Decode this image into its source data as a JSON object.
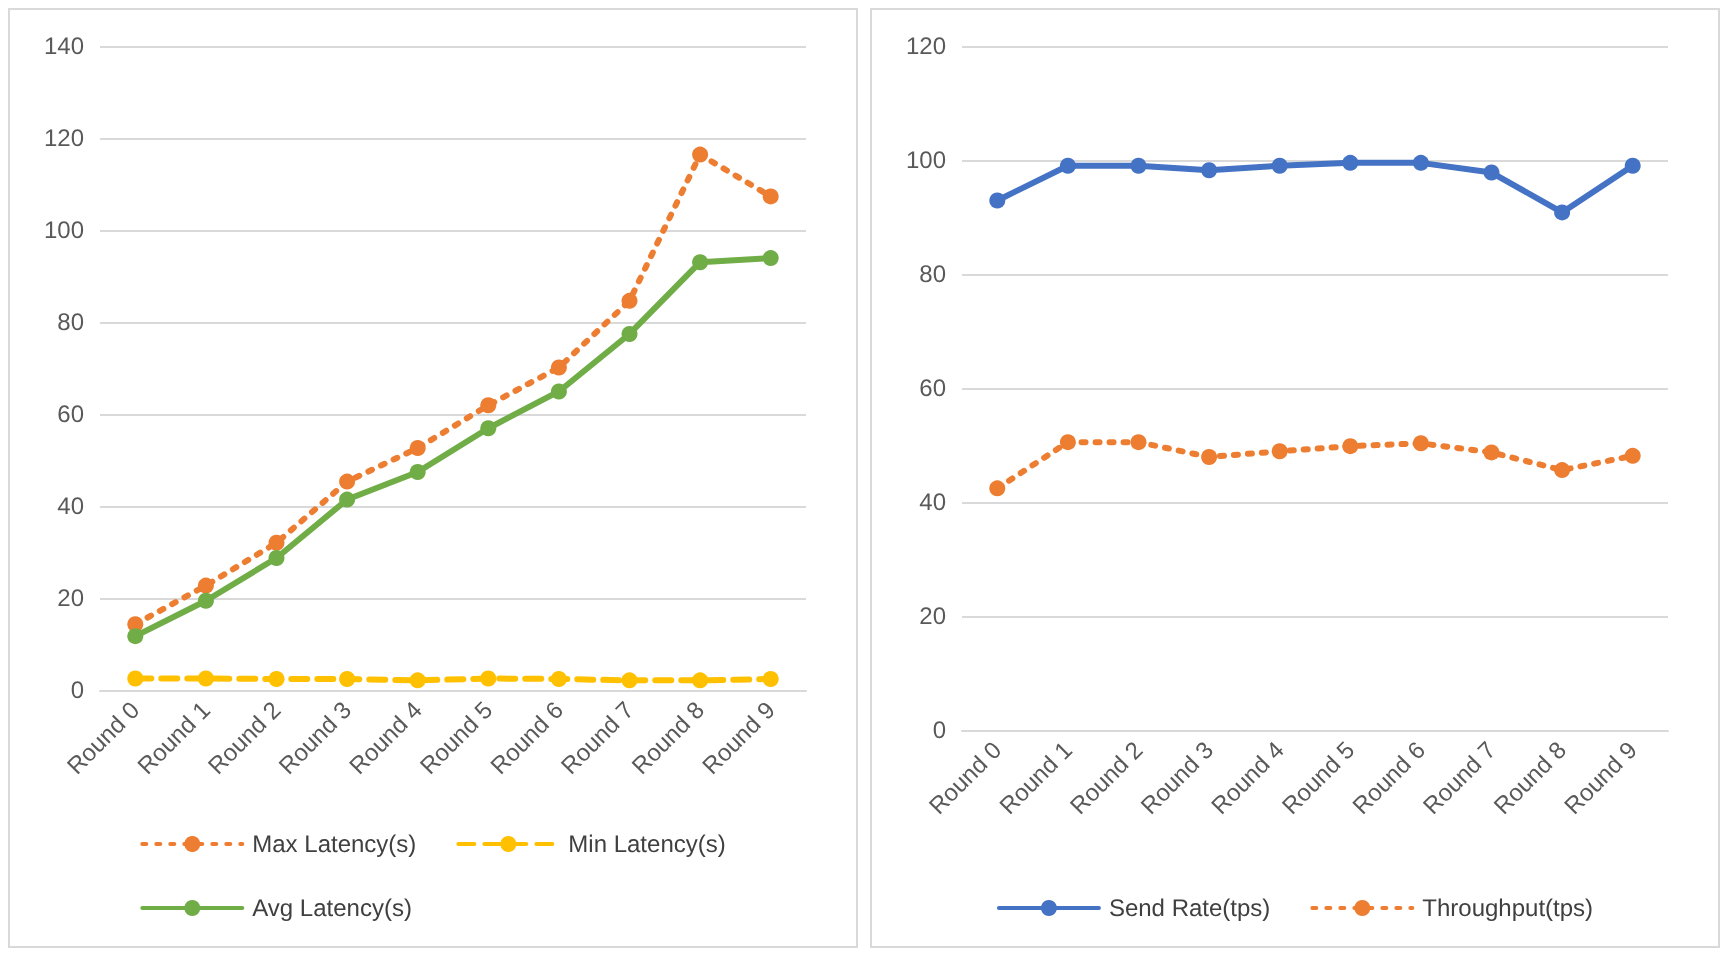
{
  "chart_data": [
    {
      "type": "line",
      "categories": [
        "Round 0",
        "Round 1",
        "Round 2",
        "Round 3",
        "Round 4",
        "Round 5",
        "Round 6",
        "Round 7",
        "Round 8",
        "Round 9"
      ],
      "series": [
        {
          "name": "Max Latency(s)",
          "color": "#ed7d31",
          "line_style": "dotted",
          "values": [
            14.3,
            22.7,
            32,
            45.3,
            52.6,
            61.9,
            70.1,
            84.6,
            116.4,
            107.3
          ]
        },
        {
          "name": "Min Latency(s)",
          "color": "#ffc000",
          "line_style": "dashed",
          "values": [
            2.5,
            2.5,
            2.4,
            2.4,
            2.1,
            2.5,
            2.4,
            2.1,
            2.1,
            2.4
          ]
        },
        {
          "name": "Avg Latency(s)",
          "color": "#70ad47",
          "line_style": "solid",
          "values": [
            11.7,
            19.4,
            28.7,
            41.4,
            47.4,
            56.9,
            64.9,
            77.4,
            93,
            93.9
          ]
        }
      ],
      "ylim": [
        0,
        140
      ],
      "yticks": [
        0,
        20,
        40,
        60,
        80,
        100,
        120,
        140
      ],
      "grid": "y",
      "legend": "bottom",
      "marker": "circle"
    },
    {
      "type": "line",
      "categories": [
        "Round 0",
        "Round 1",
        "Round 2",
        "Round 3",
        "Round 4",
        "Round 5",
        "Round 6",
        "Round 7",
        "Round 8",
        "Round 9"
      ],
      "series": [
        {
          "name": "Send Rate(tps)",
          "color": "#4472c4",
          "line_style": "solid",
          "values": [
            92.9,
            99,
            99,
            98.2,
            99,
            99.5,
            99.5,
            97.8,
            90.8,
            99
          ]
        },
        {
          "name": "Throughput(tps)",
          "color": "#ed7d31",
          "line_style": "dotted",
          "values": [
            42.4,
            50.5,
            50.5,
            47.9,
            48.9,
            49.8,
            50.3,
            48.7,
            45.6,
            48.1
          ]
        }
      ],
      "ylim": [
        0,
        120
      ],
      "yticks": [
        0,
        20,
        40,
        60,
        80,
        100,
        120
      ],
      "grid": "y",
      "legend": "bottom",
      "marker": "circle"
    }
  ]
}
